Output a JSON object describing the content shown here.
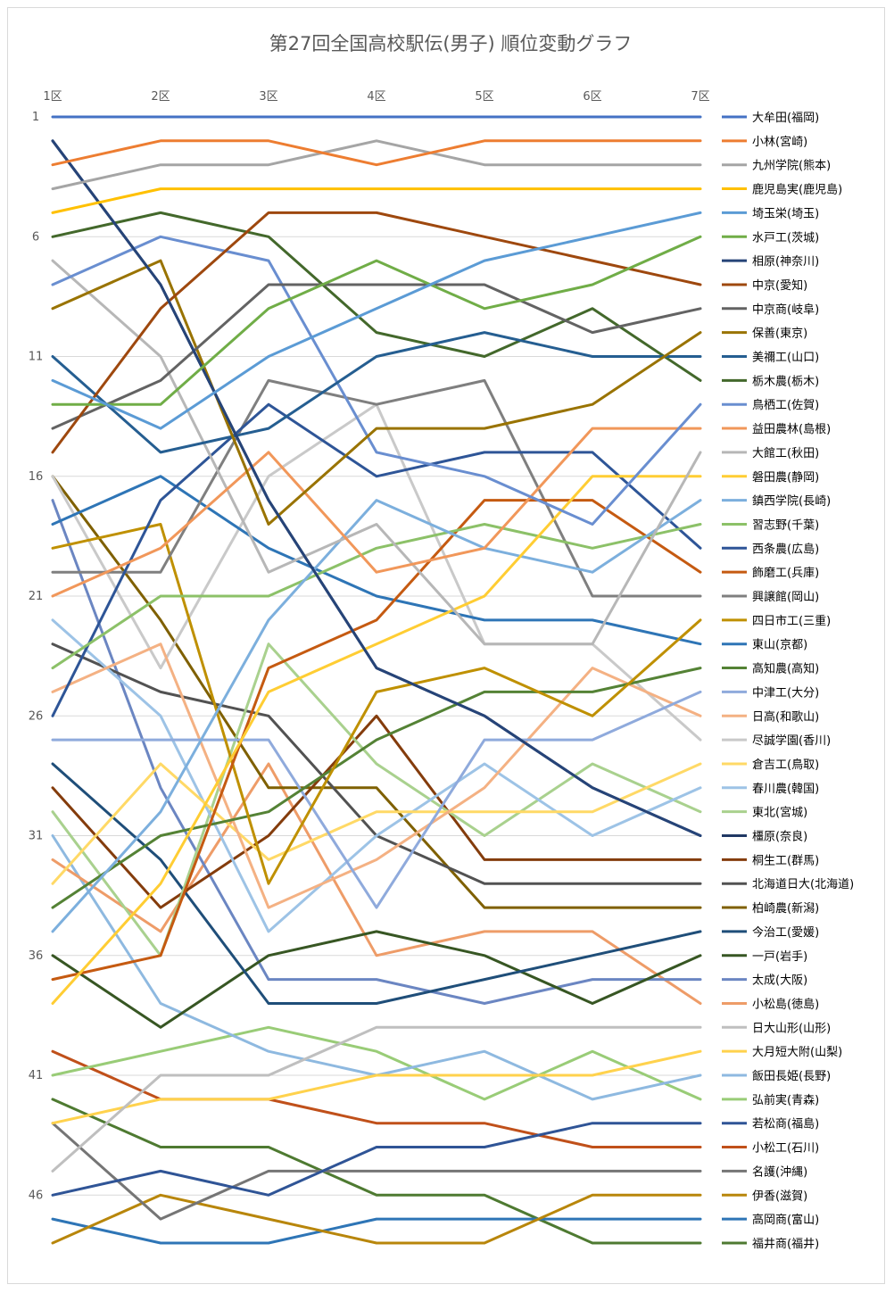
{
  "chart_data": {
    "type": "line",
    "title": "第27回全国高校駅伝(男子) 順位変動グラフ",
    "categories": [
      "1区",
      "2区",
      "3区",
      "4区",
      "5区",
      "6区",
      "7区"
    ],
    "y_ticks": [
      "1",
      "6",
      "11",
      "16",
      "21",
      "26",
      "31",
      "36",
      "41",
      "46"
    ],
    "y_tick_values": [
      1,
      6,
      11,
      16,
      21,
      26,
      31,
      36,
      41,
      46
    ],
    "ylim": [
      1,
      47
    ],
    "y_reversed": true,
    "grid": true,
    "legend_position": "right",
    "series": [
      {
        "name": "大牟田(福岡)",
        "color": "#4472C4",
        "values": [
          1,
          1,
          1,
          1,
          1,
          1,
          1
        ]
      },
      {
        "name": "小林(宮崎)",
        "color": "#ED7D31",
        "values": [
          3,
          2,
          2,
          3,
          2,
          2,
          2
        ]
      },
      {
        "name": "九州学院(熊本)",
        "color": "#A5A5A5",
        "values": [
          4,
          3,
          3,
          2,
          3,
          3,
          3
        ]
      },
      {
        "name": "鹿児島実(鹿児島)",
        "color": "#FFC000",
        "values": [
          5,
          4,
          4,
          4,
          4,
          4,
          4
        ]
      },
      {
        "name": "埼玉栄(埼玉)",
        "color": "#5B9BD5",
        "values": [
          12,
          14,
          11,
          9,
          7,
          6,
          5
        ]
      },
      {
        "name": "水戸工(茨城)",
        "color": "#70AD47",
        "values": [
          13,
          13,
          9,
          7,
          9,
          8,
          6
        ]
      },
      {
        "name": "相原(神奈川)",
        "color": "#264478",
        "values": [
          2,
          8,
          17,
          24,
          26,
          29,
          31
        ]
      },
      {
        "name": "中京(愛知)",
        "color": "#9E480E",
        "values": [
          15,
          9,
          5,
          5,
          6,
          7,
          8
        ]
      },
      {
        "name": "中京商(岐阜)",
        "color": "#636363",
        "values": [
          14,
          12,
          8,
          8,
          8,
          10,
          9
        ]
      },
      {
        "name": "保善(東京)",
        "color": "#997300",
        "values": [
          9,
          7,
          18,
          14,
          14,
          13,
          10
        ]
      },
      {
        "name": "美禰工(山口)",
        "color": "#255E91",
        "values": [
          11,
          15,
          14,
          11,
          10,
          11,
          11
        ]
      },
      {
        "name": "栃木農(栃木)",
        "color": "#43682B",
        "values": [
          6,
          5,
          6,
          10,
          11,
          9,
          12
        ]
      },
      {
        "name": "鳥栖工(佐賀)",
        "color": "#698ED0",
        "values": [
          8,
          6,
          7,
          15,
          16,
          18,
          13
        ]
      },
      {
        "name": "益田農林(島根)",
        "color": "#F1975A",
        "values": [
          21,
          19,
          15,
          20,
          19,
          14,
          14
        ]
      },
      {
        "name": "大館工(秋田)",
        "color": "#B7B7B7",
        "values": [
          7,
          11,
          20,
          18,
          23,
          23,
          15
        ]
      },
      {
        "name": "磐田農(静岡)",
        "color": "#FFCD33",
        "values": [
          38,
          33,
          25,
          23,
          21,
          16,
          16
        ]
      },
      {
        "name": "鎮西学院(長崎)",
        "color": "#7CAFDD",
        "values": [
          35,
          30,
          22,
          17,
          19,
          20,
          17
        ]
      },
      {
        "name": "習志野(千葉)",
        "color": "#8CC168",
        "values": [
          24,
          21,
          21,
          19,
          18,
          19,
          18
        ]
      },
      {
        "name": "西条農(広島)",
        "color": "#2E5597",
        "values": [
          26,
          17,
          13,
          16,
          15,
          15,
          19
        ]
      },
      {
        "name": "飾磨工(兵庫)",
        "color": "#C55A11",
        "values": [
          37,
          36,
          24,
          22,
          17,
          17,
          20
        ]
      },
      {
        "name": "興譲館(岡山)",
        "color": "#7F7F7F",
        "values": [
          20,
          20,
          12,
          13,
          12,
          21,
          21
        ]
      },
      {
        "name": "四日市工(三重)",
        "color": "#BF9000",
        "values": [
          19,
          18,
          33,
          25,
          24,
          26,
          22
        ]
      },
      {
        "name": "東山(京都)",
        "color": "#2E75B6",
        "values": [
          18,
          16,
          19,
          21,
          22,
          22,
          23
        ]
      },
      {
        "name": "高知農(高知)",
        "color": "#548235",
        "values": [
          34,
          31,
          30,
          27,
          25,
          25,
          24
        ]
      },
      {
        "name": "中津工(大分)",
        "color": "#8FAADC",
        "values": [
          27,
          27,
          27,
          34,
          27,
          27,
          25
        ]
      },
      {
        "name": "日高(和歌山)",
        "color": "#F4B183",
        "values": [
          25,
          23,
          34,
          32,
          29,
          24,
          26
        ]
      },
      {
        "name": "尽誠学園(香川)",
        "color": "#C9C9C9",
        "values": [
          16,
          24,
          16,
          13,
          23,
          23,
          27
        ]
      },
      {
        "name": "倉吉工(鳥取)",
        "color": "#FFD966",
        "values": [
          33,
          28,
          32,
          30,
          30,
          30,
          28
        ]
      },
      {
        "name": "春川農(韓国)",
        "color": "#9DC3E6",
        "values": [
          22,
          26,
          35,
          31,
          28,
          31,
          29
        ]
      },
      {
        "name": "東北(宮城)",
        "color": "#A9D18E",
        "values": [
          30,
          36,
          23,
          28,
          31,
          28,
          30
        ]
      },
      {
        "name": "橿原(奈良)",
        "color": "#203864",
        "values": [
          2,
          8,
          17,
          24,
          26,
          29,
          31
        ]
      },
      {
        "name": "桐生工(群馬)",
        "color": "#843C0C",
        "values": [
          29,
          34,
          31,
          26,
          32,
          32,
          32
        ]
      },
      {
        "name": "北海道日大(北海道)",
        "color": "#525252",
        "values": [
          23,
          25,
          26,
          31,
          33,
          33,
          33
        ]
      },
      {
        "name": "柏崎農(新潟)",
        "color": "#7F6000",
        "values": [
          16,
          22,
          29,
          29,
          34,
          34,
          34
        ]
      },
      {
        "name": "今治工(愛媛)",
        "color": "#1F4E79",
        "values": [
          28,
          32,
          38,
          38,
          37,
          36,
          35
        ]
      },
      {
        "name": "一戸(岩手)",
        "color": "#375623",
        "values": [
          36,
          39,
          36,
          35,
          36,
          38,
          36
        ]
      },
      {
        "name": "太成(大阪)",
        "color": "#6B86C2",
        "values": [
          17,
          29,
          37,
          37,
          38,
          37,
          37
        ]
      },
      {
        "name": "小松島(徳島)",
        "color": "#EE9C68",
        "values": [
          32,
          35,
          28,
          36,
          35,
          35,
          38
        ]
      },
      {
        "name": "日大山形(山形)",
        "color": "#BFBFBF",
        "values": [
          45,
          41,
          41,
          39,
          39,
          39,
          39
        ]
      },
      {
        "name": "大月短大附(山梨)",
        "color": "#FFD24D",
        "values": [
          43,
          42,
          42,
          41,
          41,
          41,
          40
        ]
      },
      {
        "name": "飯田長姫(長野)",
        "color": "#8EB9E0",
        "values": [
          31,
          38,
          40,
          41,
          40,
          42,
          41
        ]
      },
      {
        "name": "弘前実(青森)",
        "color": "#99CC77",
        "values": [
          41,
          40,
          39,
          40,
          42,
          40,
          42
        ]
      },
      {
        "name": "若松商(福島)",
        "color": "#2F5496",
        "values": [
          46,
          45,
          46,
          44,
          44,
          43,
          43
        ]
      },
      {
        "name": "小松工(石川)",
        "color": "#C0501A",
        "values": [
          40,
          42,
          42,
          43,
          43,
          44,
          44
        ]
      },
      {
        "name": "名護(沖縄)",
        "color": "#757575",
        "values": [
          43,
          47,
          45,
          45,
          45,
          45,
          45
        ]
      },
      {
        "name": "伊香(滋賀)",
        "color": "#B8860B",
        "values": [
          48,
          46,
          47,
          48,
          48,
          46,
          46
        ]
      },
      {
        "name": "高岡商(富山)",
        "color": "#2E75B6",
        "values": [
          47,
          48,
          48,
          47,
          47,
          47,
          47
        ]
      },
      {
        "name": "福井商(福井)",
        "color": "#4E7A31",
        "values": [
          42,
          44,
          44,
          46,
          46,
          48,
          48
        ]
      }
    ]
  }
}
